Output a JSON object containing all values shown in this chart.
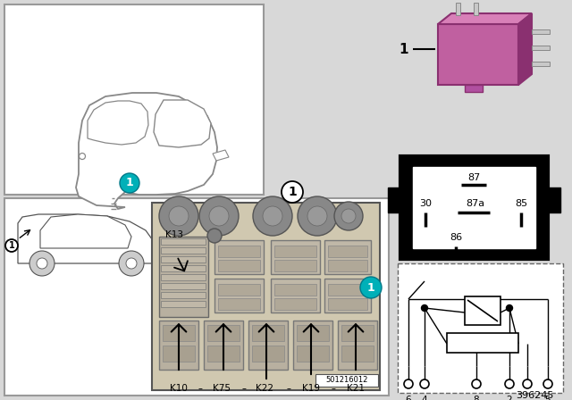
{
  "fig_width": 6.4,
  "fig_height": 4.48,
  "dpi": 100,
  "bg_color": "#d8d8d8",
  "relay_color": "#c060a0",
  "relay_dark": "#8a3070",
  "relay_light": "#d880b8",
  "teal_color": "#00b0b8",
  "part_number": "396245",
  "catalog_number": "501216012",
  "component_labels": [
    "K10",
    "K75",
    "K22",
    "K19",
    "K21"
  ],
  "fuse_label": "K13"
}
